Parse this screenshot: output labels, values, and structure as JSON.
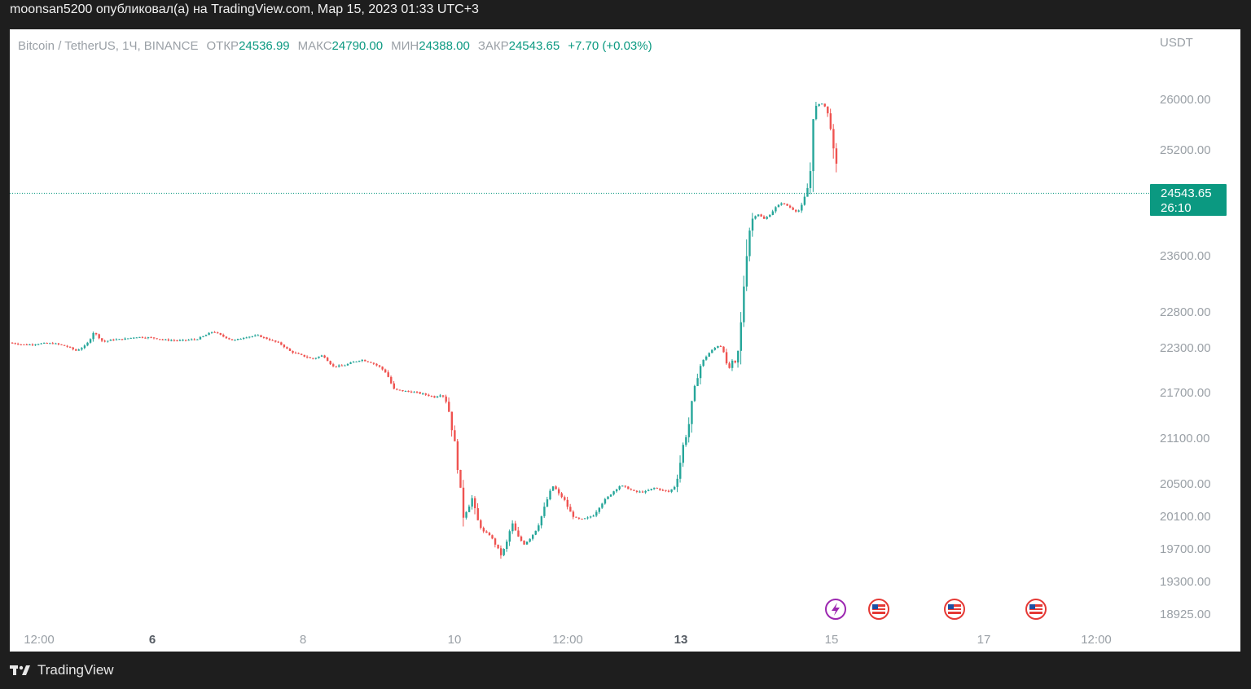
{
  "header": {
    "publisher_line": "moonsan5200 опубликовал(а) на TradingView.com, Мар 15, 2023 01:33 UTC+3"
  },
  "legend": {
    "symbol": "Bitcoin / TetherUS, 1Ч, BINANCE",
    "open_label": "ОТКР",
    "open_value": "24536.99",
    "high_label": "МАКС",
    "high_value": "24790.00",
    "low_label": "МИН",
    "low_value": "24388.00",
    "close_label": "ЗАКР",
    "close_value": "24543.65",
    "change": "+7.70 (+0.03%)"
  },
  "price_tag": {
    "price": "24543.65",
    "countdown": "26:10"
  },
  "footer": {
    "brand": "TradingView"
  },
  "colors": {
    "up": "#26a69a",
    "down": "#ef5350",
    "accent": "#0b9981",
    "text_muted": "#9aa0a6"
  },
  "chart_data": {
    "type": "candlestick",
    "currency": "USDT",
    "y_ticks": [
      26000,
      25200,
      23600,
      22800,
      22300,
      21700,
      21100,
      20500,
      20100,
      19700,
      19300,
      18925
    ],
    "y_tick_labels": [
      "26000.00",
      "25200.00",
      "23600.00",
      "22800.00",
      "22300.00",
      "21700.00",
      "21100.00",
      "20500.00",
      "20100.00",
      "19700.00",
      "19300.00",
      "18925.00"
    ],
    "x_ticks": [
      {
        "label": "12:00",
        "bold": false
      },
      {
        "label": "6",
        "bold": true
      },
      {
        "label": "8",
        "bold": false
      },
      {
        "label": "10",
        "bold": false
      },
      {
        "label": "12:00",
        "bold": false
      },
      {
        "label": "13",
        "bold": true
      },
      {
        "label": "15",
        "bold": false
      },
      {
        "label": "17",
        "bold": false
      },
      {
        "label": "12:00",
        "bold": false
      }
    ],
    "last_price": 24543.65,
    "price_path": [
      [
        0,
        22370
      ],
      [
        20,
        22340
      ],
      [
        40,
        22360
      ],
      [
        55,
        22360
      ],
      [
        70,
        22320
      ],
      [
        82,
        22260
      ],
      [
        92,
        22320
      ],
      [
        97,
        22380
      ],
      [
        103,
        22520
      ],
      [
        108,
        22470
      ],
      [
        115,
        22380
      ],
      [
        125,
        22410
      ],
      [
        140,
        22420
      ],
      [
        155,
        22450
      ],
      [
        175,
        22440
      ],
      [
        190,
        22410
      ],
      [
        210,
        22400
      ],
      [
        230,
        22420
      ],
      [
        240,
        22470
      ],
      [
        250,
        22530
      ],
      [
        262,
        22460
      ],
      [
        275,
        22400
      ],
      [
        290,
        22450
      ],
      [
        305,
        22470
      ],
      [
        320,
        22410
      ],
      [
        332,
        22360
      ],
      [
        345,
        22250
      ],
      [
        358,
        22200
      ],
      [
        372,
        22150
      ],
      [
        385,
        22200
      ],
      [
        397,
        22050
      ],
      [
        410,
        22060
      ],
      [
        420,
        22100
      ],
      [
        432,
        22140
      ],
      [
        445,
        22100
      ],
      [
        455,
        22040
      ],
      [
        463,
        21960
      ],
      [
        472,
        21740
      ],
      [
        485,
        21720
      ],
      [
        500,
        21700
      ],
      [
        512,
        21670
      ],
      [
        522,
        21640
      ],
      [
        531,
        21680
      ],
      [
        538,
        21550
      ],
      [
        543,
        21250
      ],
      [
        548,
        20950
      ],
      [
        552,
        20600
      ],
      [
        556,
        20110
      ],
      [
        562,
        20180
      ],
      [
        568,
        20320
      ],
      [
        574,
        20060
      ],
      [
        582,
        19910
      ],
      [
        590,
        19870
      ],
      [
        597,
        19750
      ],
      [
        604,
        19620
      ],
      [
        610,
        19760
      ],
      [
        617,
        20020
      ],
      [
        624,
        19850
      ],
      [
        632,
        19760
      ],
      [
        640,
        19840
      ],
      [
        648,
        19960
      ],
      [
        655,
        20150
      ],
      [
        662,
        20360
      ],
      [
        668,
        20480
      ],
      [
        674,
        20380
      ],
      [
        681,
        20310
      ],
      [
        688,
        20160
      ],
      [
        694,
        20080
      ],
      [
        702,
        20060
      ],
      [
        710,
        20080
      ],
      [
        718,
        20120
      ],
      [
        726,
        20250
      ],
      [
        734,
        20330
      ],
      [
        742,
        20410
      ],
      [
        750,
        20480
      ],
      [
        758,
        20450
      ],
      [
        768,
        20400
      ],
      [
        780,
        20400
      ],
      [
        792,
        20450
      ],
      [
        802,
        20420
      ],
      [
        810,
        20400
      ],
      [
        818,
        20480
      ],
      [
        823,
        20750
      ],
      [
        828,
        21050
      ],
      [
        833,
        21200
      ],
      [
        838,
        21550
      ],
      [
        843,
        21850
      ],
      [
        848,
        22050
      ],
      [
        853,
        22150
      ],
      [
        858,
        22220
      ],
      [
        864,
        22280
      ],
      [
        870,
        22330
      ],
      [
        876,
        22310
      ],
      [
        880,
        22050
      ],
      [
        884,
        22030
      ],
      [
        888,
        22120
      ],
      [
        893,
        22080
      ],
      [
        898,
        22600
      ],
      [
        902,
        23250
      ],
      [
        906,
        23800
      ],
      [
        910,
        24100
      ],
      [
        914,
        24200
      ],
      [
        920,
        24230
      ],
      [
        926,
        24150
      ],
      [
        932,
        24200
      ],
      [
        940,
        24320
      ],
      [
        948,
        24400
      ],
      [
        956,
        24350
      ],
      [
        962,
        24300
      ],
      [
        968,
        24260
      ],
      [
        974,
        24380
      ],
      [
        978,
        24550
      ],
      [
        983,
        24750
      ],
      [
        986,
        25900
      ],
      [
        991,
        25870
      ],
      [
        996,
        25950
      ],
      [
        1000,
        25920
      ],
      [
        1004,
        25800
      ],
      [
        1008,
        25600
      ],
      [
        1012,
        25100
      ],
      [
        1016,
        24900
      ],
      [
        1020,
        24650
      ],
      [
        1024,
        24540
      ]
    ]
  }
}
